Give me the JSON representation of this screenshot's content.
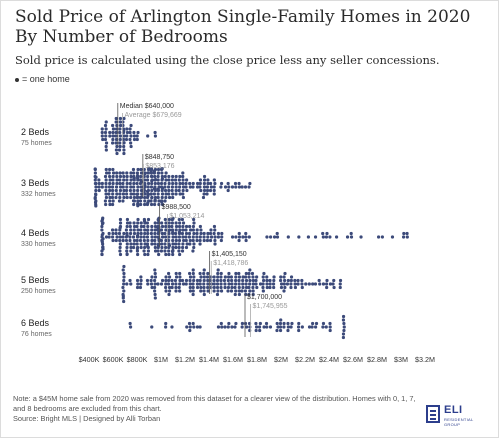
{
  "chart_data": {
    "type": "scatter",
    "title": "Sold Price of Arlington Single-Family Homes in 2020 By Number of Bedrooms",
    "subtitle": "Sold price is calculated using the close price less any seller concessions.",
    "legend": "= one home",
    "colors": {
      "dot": "#3c4a7a",
      "median": "#555555",
      "average": "#aaaaaa"
    },
    "xlim": [
      400000,
      3300000
    ],
    "x_ticks": [
      {
        "value": 400000,
        "label": "$400K"
      },
      {
        "value": 600000,
        "label": "$600K"
      },
      {
        "value": 800000,
        "label": "$800K"
      },
      {
        "value": 1000000,
        "label": "$1M"
      },
      {
        "value": 1200000,
        "label": "$1.2M"
      },
      {
        "value": 1400000,
        "label": "$1.4M"
      },
      {
        "value": 1600000,
        "label": "$1.6M"
      },
      {
        "value": 1800000,
        "label": "$1.8M"
      },
      {
        "value": 2000000,
        "label": "$2M"
      },
      {
        "value": 2200000,
        "label": "$2.2M"
      },
      {
        "value": 2400000,
        "label": "$2.4M"
      },
      {
        "value": 2600000,
        "label": "$2.6M"
      },
      {
        "value": 2800000,
        "label": "$2.8M"
      },
      {
        "value": 3000000,
        "label": "$3M"
      },
      {
        "value": 3200000,
        "label": "$3.2M"
      }
    ],
    "series": [
      {
        "name": "2 Beds",
        "count_label": "75 homes",
        "count": 75,
        "median": 640000,
        "median_label": "Median $640,000",
        "average": 679669,
        "average_label": "Average $679,669",
        "min": 500000,
        "max": 950000
      },
      {
        "name": "3 Beds",
        "count_label": "332 homes",
        "count": 332,
        "median": 848750,
        "median_label": "$848,750",
        "average": 853176,
        "average_label": "$853,176",
        "min": 440000,
        "max": 1750000
      },
      {
        "name": "4 Beds",
        "count_label": "330 homes",
        "count": 330,
        "median": 988500,
        "median_label": "$988,500",
        "average": 1053214,
        "average_label": "$1,053,214",
        "min": 500000,
        "max": 3050000
      },
      {
        "name": "5 Beds",
        "count_label": "250 homes",
        "count": 250,
        "median": 1405150,
        "median_label": "$1,405,150",
        "average": 1418786,
        "average_label": "$1,418,786",
        "min": 700000,
        "max": 2500000
      },
      {
        "name": "6 Beds",
        "count_label": "76 homes",
        "count": 76,
        "median": 1700000,
        "median_label": "$1,700,000",
        "average": 1745955,
        "average_label": "$1,745,955",
        "min": 760000,
        "max": 2520000
      }
    ]
  },
  "footer": {
    "note": "Note: a $45M home sale from 2020 was removed from this dataset for a clearer view of the distribution. Homes with 0, 1, 7, and 8 bedrooms are excluded from this chart.",
    "source": "Source: Bright MLS | Designed by Alli Torban"
  },
  "logo": {
    "name": "ELI",
    "sub": "RESIDENTIAL GROUP"
  }
}
